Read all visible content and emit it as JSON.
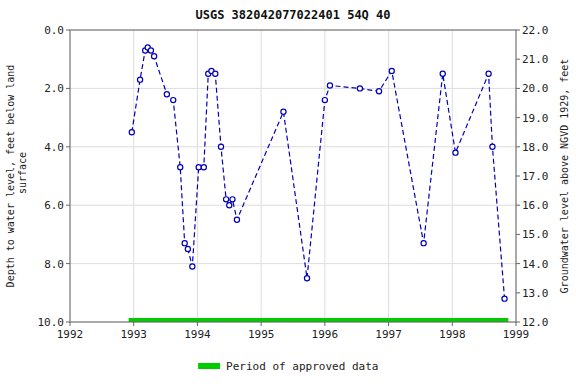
{
  "chart_data": {
    "type": "line",
    "title": "USGS 382042077022401 54Q 40",
    "ylabel": "Depth to water level, feet below land\n surface",
    "y2label": "Groundwater level above NGVD 1929, feet",
    "xlim": [
      1992,
      1999
    ],
    "xticks": [
      1992,
      1993,
      1994,
      1995,
      1996,
      1997,
      1998,
      1999
    ],
    "ylim": [
      10.0,
      0.0
    ],
    "yticks": [
      {
        "value": 0.0,
        "label": "0.0"
      },
      {
        "value": 2.0,
        "label": "2.0"
      },
      {
        "value": 4.0,
        "label": "4.0"
      },
      {
        "value": 6.0,
        "label": "6.0"
      },
      {
        "value": 8.0,
        "label": "8.0"
      },
      {
        "value": 10.0,
        "label": "10.0"
      }
    ],
    "y2lim": [
      12.0,
      22.0
    ],
    "y2ticks": [
      {
        "value": 12.0,
        "label": "12.0"
      },
      {
        "value": 13.0,
        "label": "13.0"
      },
      {
        "value": 14.0,
        "label": "14.0"
      },
      {
        "value": 15.0,
        "label": "15.0"
      },
      {
        "value": 16.0,
        "label": "16.0"
      },
      {
        "value": 17.0,
        "label": "17.0"
      },
      {
        "value": 18.0,
        "label": "18.0"
      },
      {
        "value": 19.0,
        "label": "19.0"
      },
      {
        "value": 20.0,
        "label": "20.0"
      },
      {
        "value": 21.0,
        "label": "21.0"
      },
      {
        "value": 22.0,
        "label": "22.0"
      }
    ],
    "grid": true,
    "legend": "bottom",
    "series": [
      {
        "color": "#0000bb",
        "marker": "circle",
        "line_style": "dashed",
        "x": [
          1992.97,
          1993.1,
          1993.18,
          1993.22,
          1993.27,
          1993.32,
          1993.52,
          1993.62,
          1993.73,
          1993.8,
          1993.85,
          1993.92,
          1994.02,
          1994.1,
          1994.17,
          1994.22,
          1994.28,
          1994.37,
          1994.45,
          1994.5,
          1994.55,
          1994.62,
          1995.35,
          1995.72,
          1996.0,
          1996.08,
          1996.55,
          1996.85,
          1997.05,
          1997.55,
          1997.85,
          1998.05,
          1998.57,
          1998.63,
          1998.82
        ],
        "values": [
          3.5,
          1.7,
          0.7,
          0.6,
          0.7,
          0.9,
          2.2,
          2.4,
          4.7,
          7.3,
          7.5,
          8.1,
          4.7,
          4.7,
          1.5,
          1.4,
          1.5,
          4.0,
          5.8,
          6.0,
          5.8,
          6.5,
          2.8,
          8.5,
          2.4,
          1.9,
          2.0,
          2.1,
          1.4,
          7.3,
          1.5,
          4.2,
          1.5,
          4.0,
          9.2
        ]
      },
      {
        "name": "Period of approved data",
        "color": "#00cc00",
        "line_style": "solid",
        "x": [
          1992.92,
          1998.88
        ],
        "values": [
          10.0,
          10.0
        ]
      }
    ]
  }
}
